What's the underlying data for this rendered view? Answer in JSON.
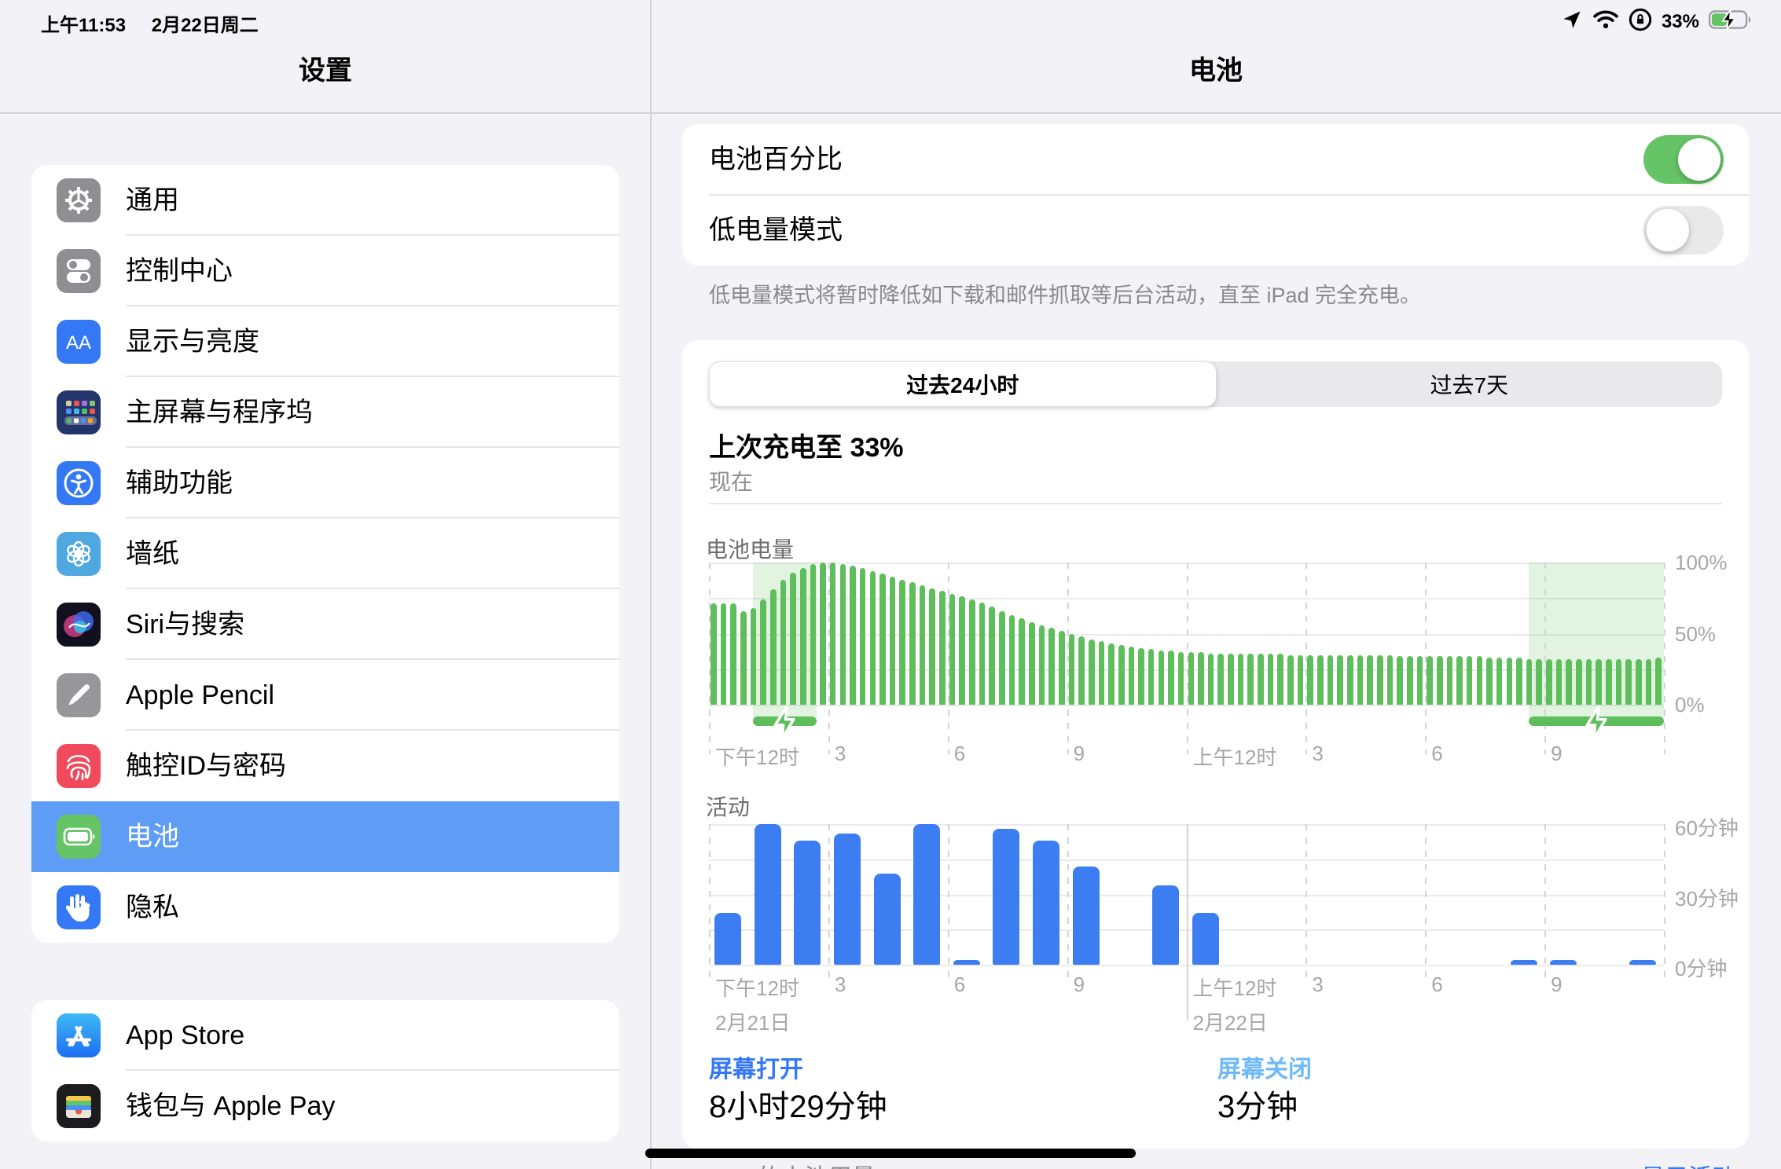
{
  "status_bar": {
    "time": "上午11:53",
    "date": "2月22日周二",
    "battery_percent": "33%"
  },
  "sidebar": {
    "title": "设置",
    "groups": [
      {
        "items": [
          {
            "label": "通用",
            "icon": "gear-icon",
            "color": "#8E8E93"
          },
          {
            "label": "控制中心",
            "icon": "control-center-icon",
            "color": "#8E8E93"
          },
          {
            "label": "显示与亮度",
            "icon": "display-brightness-icon",
            "color": "#3478F6"
          },
          {
            "label": "主屏幕与程序坞",
            "icon": "home-screen-dock-icon",
            "color": "#24356B"
          },
          {
            "label": "辅助功能",
            "icon": "accessibility-icon",
            "color": "#3478F6"
          },
          {
            "label": "墙纸",
            "icon": "wallpaper-icon",
            "color": "#4FA9E0"
          },
          {
            "label": "Siri与搜索",
            "icon": "siri-icon",
            "color": "#121224"
          },
          {
            "label": "Apple Pencil",
            "icon": "pencil-icon",
            "color": "#96969B"
          },
          {
            "label": "触控ID与密码",
            "icon": "touch-id-icon",
            "color": "#F04A5C"
          },
          {
            "label": "电池",
            "icon": "battery-icon",
            "color": "#65C466",
            "selected": true
          },
          {
            "label": "隐私",
            "icon": "privacy-hand-icon",
            "color": "#3478F6"
          }
        ]
      },
      {
        "items": [
          {
            "label": "App Store",
            "icon": "app-store-icon",
            "color": "#1E8EF7"
          },
          {
            "label": "钱包与 Apple Pay",
            "icon": "wallet-icon",
            "color": "#1C1C1E"
          }
        ]
      }
    ]
  },
  "battery_page": {
    "title": "电池",
    "toggles": [
      {
        "label": "电池百分比",
        "on": true
      },
      {
        "label": "低电量模式",
        "on": false
      }
    ],
    "footnote": "低电量模式将暂时降低如下载和邮件抓取等后台活动，直至 iPad 完全充电。",
    "tabs": [
      {
        "label": "过去24小时",
        "selected": true
      },
      {
        "label": "过去7天",
        "selected": false
      }
    ],
    "last_charge_title": "上次充电至 33%",
    "last_charge_subtitle": "现在",
    "screen_on_label": "屏幕打开",
    "screen_on_value": "8小时29分钟",
    "screen_off_label": "屏幕关闭",
    "screen_off_value": "3分钟",
    "bottom_left_partial": "App 的电池用量",
    "bottom_right_partial": "显示活动"
  },
  "colors": {
    "accent_blue": "#3478F6",
    "selected_row_blue": "#5E9CF6",
    "toggle_on_green": "#65C466",
    "battery_bar_green": "#5FBE5C",
    "charging_shade_green": "rgba(96,190,96,0.18)",
    "activity_bar_blue": "#3D7DF2",
    "screen_off_blue": "#6FB9F9"
  },
  "chart_data": [
    {
      "type": "bar",
      "title": "电池电量",
      "x_tick_labels": [
        "下午12时",
        "3",
        "6",
        "9",
        "上午12时",
        "3",
        "6",
        "9"
      ],
      "y_tick_labels": [
        "100%",
        "50%",
        "0%"
      ],
      "ylim": [
        0,
        100
      ],
      "bar_interval_minutes": 15,
      "values": [
        71,
        71,
        71,
        66,
        68,
        74,
        81,
        88,
        93,
        96,
        99,
        100,
        100,
        99,
        98,
        96,
        94,
        92,
        90,
        88,
        86,
        84,
        82,
        80,
        78,
        76,
        74,
        72,
        69,
        66,
        63,
        61,
        58,
        56,
        54,
        52,
        50,
        48,
        46,
        45,
        43,
        42,
        41,
        40,
        39,
        38,
        38,
        37,
        37,
        37,
        36,
        36,
        36,
        36,
        36,
        36,
        36,
        36,
        35,
        35,
        35,
        35,
        35,
        35,
        35,
        35,
        35,
        35,
        35,
        34,
        34,
        34,
        34,
        34,
        34,
        34,
        34,
        34,
        33,
        33,
        33,
        33,
        32,
        32,
        32,
        32,
        32,
        32,
        32,
        32,
        32,
        32,
        32,
        32,
        32,
        33
      ],
      "charging_periods_hours": [
        [
          1.1,
          2.7
        ],
        [
          20.6,
          24
        ]
      ]
    },
    {
      "type": "bar",
      "title": "活动",
      "x_tick_labels": [
        "下午12时",
        "3",
        "6",
        "9",
        "上午12时",
        "3",
        "6",
        "9"
      ],
      "date_labels": [
        {
          "text": "2月21日",
          "tick": 0
        },
        {
          "text": "2月22日",
          "tick": 4
        }
      ],
      "y_tick_labels": [
        "60分钟",
        "30分钟",
        "0分钟"
      ],
      "ylim": [
        0,
        60
      ],
      "bar_interval_minutes": 60,
      "values": [
        22,
        60,
        53,
        56,
        39,
        60,
        2,
        58,
        53,
        42,
        0,
        34,
        22,
        0,
        0,
        0,
        0,
        0,
        0,
        0,
        2,
        2,
        0,
        2
      ]
    }
  ]
}
